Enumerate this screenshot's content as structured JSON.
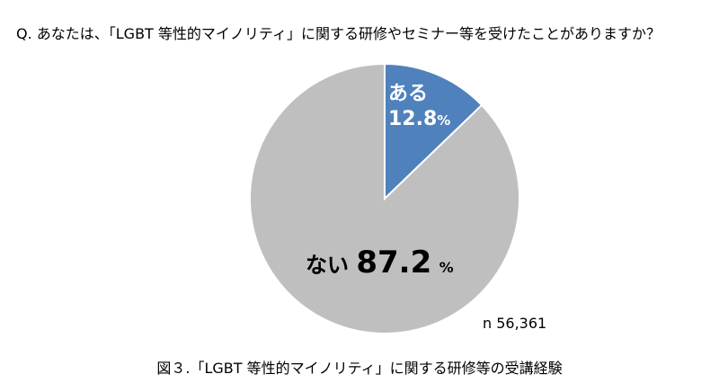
{
  "question": "Q.  あなたは、「LGBT 等性的マイノリティ」に関する研修やセミナー等を受けたことがありますか？",
  "chart_data": {
    "type": "pie",
    "slices": [
      {
        "label": "ある",
        "value": 12.8,
        "color": "#4f81bd"
      },
      {
        "label": "ない",
        "value": 87.2,
        "color": "#bfbfbf"
      }
    ],
    "unit": "%",
    "start": "12 o'clock, clockwise",
    "sample_size": "n 56,361",
    "title": "図３.「LGBT 等性的マイノリティ」に関する研修等の受講経験"
  },
  "labels": {
    "yes_name": "ある",
    "yes_value": "12.8",
    "no_name": "ない",
    "no_value": "87.2",
    "percent": "%"
  }
}
